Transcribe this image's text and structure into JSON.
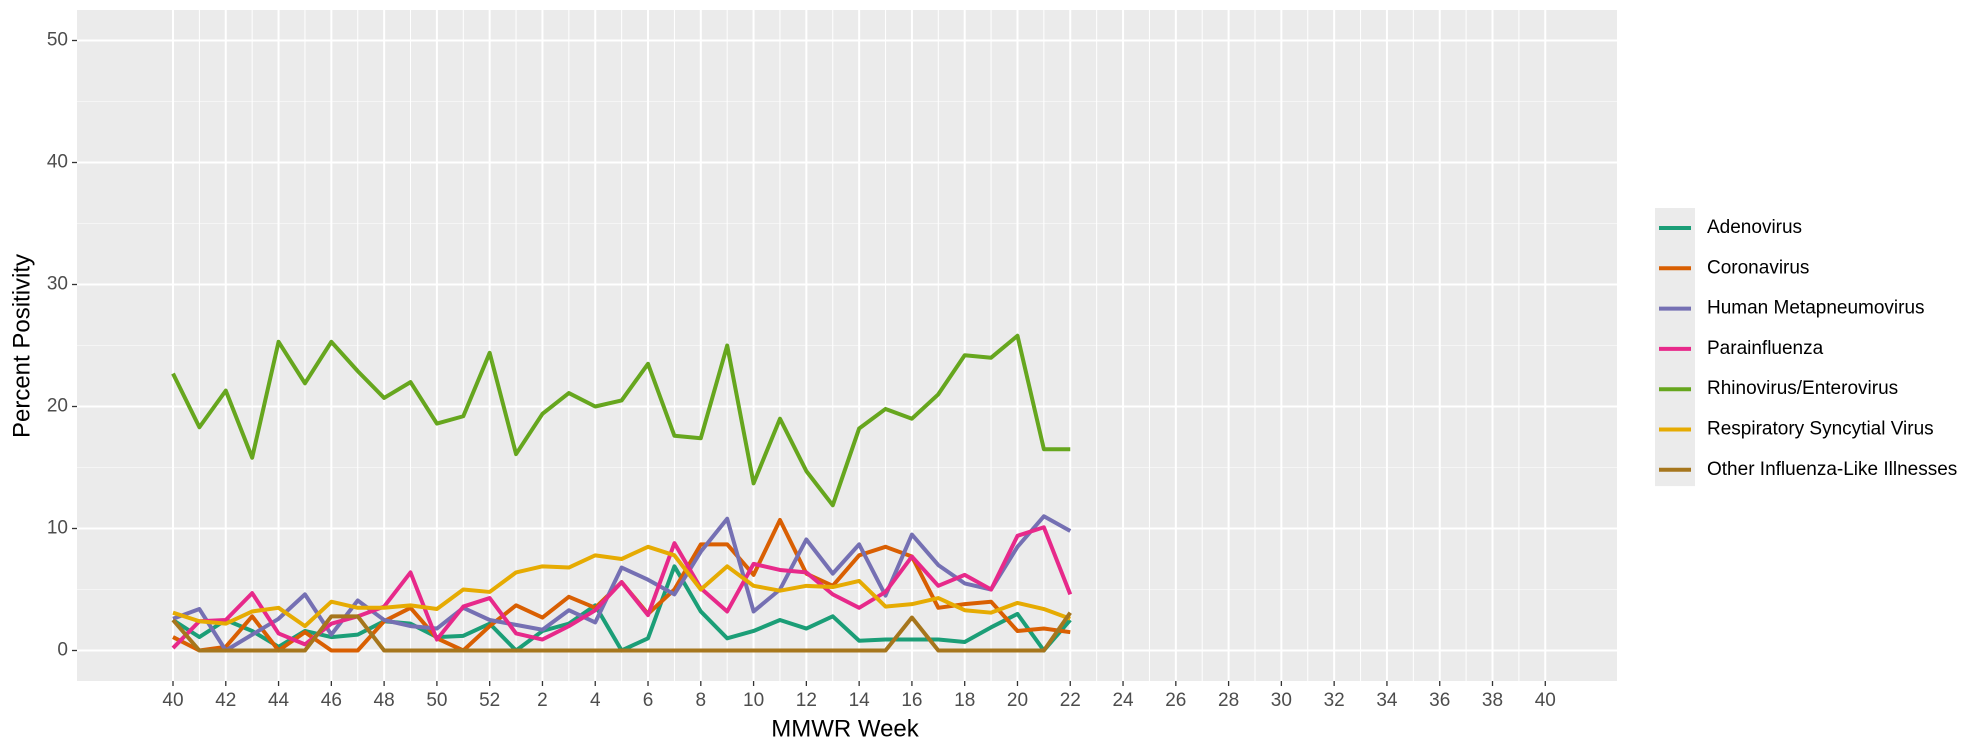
{
  "chart_data": {
    "type": "line",
    "x_label": "MMWR Week",
    "y_label": "Percent Positivity",
    "categories": [
      "40",
      null,
      "42",
      null,
      "44",
      null,
      "46",
      null,
      "48",
      null,
      "50",
      null,
      "52",
      null,
      "2",
      null,
      "4",
      null,
      "6",
      null,
      "8",
      null,
      "10",
      null,
      "12",
      null,
      "14",
      null,
      "16",
      null,
      "18",
      null,
      "20",
      null,
      "22",
      null,
      "24",
      null,
      "26",
      null,
      "28",
      null,
      "30",
      null,
      "32",
      null,
      "34",
      null,
      "36",
      null,
      "38",
      null,
      "40"
    ],
    "series": [
      {
        "name": "Adenovirus",
        "color": "#1b9e77",
        "values": [
          2.5,
          1.1,
          2.5,
          1.6,
          0.3,
          1.6,
          1.1,
          1.3,
          2.4,
          2.2,
          1.1,
          1.2,
          2.2,
          0,
          1.6,
          2.2,
          3.7,
          0,
          1.0,
          6.9,
          3.2,
          1.0,
          1.6,
          2.5,
          1.8,
          2.8,
          0.8,
          0.9,
          0.9,
          0.9,
          0.7,
          1.9,
          3.0,
          0,
          2.5,
          null,
          null,
          null,
          null,
          null,
          null,
          null,
          null,
          null,
          null,
          null,
          null,
          null,
          null,
          null,
          null,
          null,
          null
        ]
      },
      {
        "name": "Coronavirus",
        "color": "#d95f02",
        "values": [
          1.1,
          0,
          0.3,
          2.8,
          0,
          1.5,
          0,
          0,
          2.4,
          3.5,
          1.0,
          0,
          2.0,
          3.7,
          2.7,
          4.4,
          3.5,
          5.6,
          3.0,
          5.0,
          8.7,
          8.7,
          6.2,
          10.7,
          6.3,
          5.3,
          7.8,
          8.5,
          7.7,
          3.5,
          3.8,
          4.0,
          1.6,
          1.8,
          1.5,
          null,
          null,
          null,
          null,
          null,
          null,
          null,
          null,
          null,
          null,
          null,
          null,
          null,
          null,
          null,
          null,
          null,
          null
        ]
      },
      {
        "name": "Human Metapneumovirus",
        "color": "#7570b3",
        "values": [
          2.6,
          3.4,
          0,
          1.3,
          2.6,
          4.6,
          1.3,
          4.1,
          2.5,
          2.0,
          1.8,
          3.5,
          2.5,
          2.1,
          1.7,
          3.3,
          2.3,
          6.8,
          5.8,
          4.6,
          8.1,
          10.8,
          3.2,
          5.0,
          9.1,
          6.3,
          8.7,
          4.5,
          9.5,
          7.0,
          5.5,
          5.0,
          8.5,
          11.0,
          9.8,
          null,
          null,
          null,
          null,
          null,
          null,
          null,
          null,
          null,
          null,
          null,
          null,
          null,
          null,
          null,
          null,
          null,
          null
        ]
      },
      {
        "name": "Parainfluenza",
        "color": "#e7298a",
        "values": [
          0.2,
          2.4,
          2.5,
          4.7,
          1.4,
          0.5,
          2.2,
          2.8,
          3.6,
          6.4,
          0.9,
          3.6,
          4.3,
          1.4,
          0.9,
          2.0,
          3.3,
          5.6,
          2.9,
          8.8,
          5.1,
          3.2,
          7.1,
          6.6,
          6.4,
          4.6,
          3.5,
          4.8,
          7.7,
          5.3,
          6.2,
          5.0,
          9.4,
          10.1,
          4.6,
          null,
          null,
          null,
          null,
          null,
          null,
          null,
          null,
          null,
          null,
          null,
          null,
          null,
          null,
          null,
          null,
          null,
          null
        ]
      },
      {
        "name": "Rhinovirus/Enterovirus",
        "color": "#66a61e",
        "values": [
          22.7,
          18.3,
          21.3,
          15.8,
          25.3,
          21.9,
          25.3,
          22.9,
          20.7,
          22.0,
          18.6,
          19.2,
          24.4,
          16.1,
          19.4,
          21.1,
          20.0,
          20.5,
          23.5,
          17.6,
          17.4,
          25.0,
          13.7,
          19.0,
          14.7,
          11.9,
          18.2,
          19.8,
          19.0,
          21.0,
          24.2,
          24.0,
          25.8,
          16.5,
          16.5,
          null,
          null,
          null,
          null,
          null,
          null,
          null,
          null,
          null,
          null,
          null,
          null,
          null,
          null,
          null,
          null,
          null,
          null
        ]
      },
      {
        "name": "Respiratory Syncytial Virus",
        "color": "#e6ab02",
        "values": [
          3.1,
          2.4,
          2.2,
          3.2,
          3.5,
          2.0,
          4.0,
          3.5,
          3.5,
          3.7,
          3.4,
          5.0,
          4.8,
          6.4,
          6.9,
          6.8,
          7.8,
          7.5,
          8.5,
          7.8,
          5.0,
          6.9,
          5.3,
          4.9,
          5.3,
          5.2,
          5.7,
          3.6,
          3.8,
          4.3,
          3.3,
          3.1,
          3.9,
          3.4,
          2.6,
          null,
          null,
          null,
          null,
          null,
          null,
          null,
          null,
          null,
          null,
          null,
          null,
          null,
          null,
          null,
          null,
          null,
          null
        ]
      },
      {
        "name": "Other Influenza-Like Illnesses",
        "color": "#a6761d",
        "values": [
          2.5,
          0,
          0,
          0,
          0,
          0,
          2.8,
          2.8,
          0,
          0,
          0,
          0,
          0,
          0,
          0,
          0,
          0,
          0,
          0,
          0,
          0,
          0,
          0,
          0,
          0,
          0,
          0,
          0,
          2.7,
          0,
          0,
          0,
          0,
          0,
          3.1,
          null,
          null,
          null,
          null,
          null,
          null,
          null,
          null,
          null,
          null,
          null,
          null,
          null,
          null,
          null,
          null,
          null,
          null
        ]
      }
    ],
    "ylim": [
      -2.5,
      52.5
    ],
    "yticks": [
      0,
      10,
      20,
      30,
      40,
      50
    ],
    "grid": true,
    "legend_position": "right"
  }
}
